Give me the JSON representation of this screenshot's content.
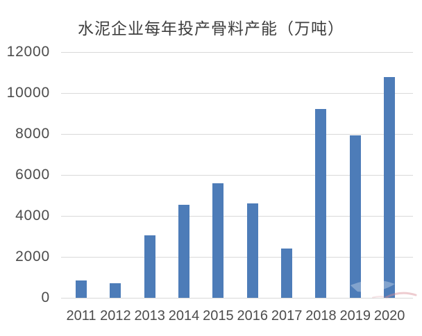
{
  "page": {
    "background": "#ffffff"
  },
  "chart_data": {
    "type": "bar",
    "title": "水泥企业每年投产骨料产能（万吨）",
    "categories": [
      "2011",
      "2012",
      "2013",
      "2014",
      "2015",
      "2016",
      "2017",
      "2018",
      "2019",
      "2020"
    ],
    "values": [
      850,
      700,
      3050,
      4550,
      5580,
      4600,
      2420,
      9220,
      7940,
      10780
    ],
    "xlabel": "",
    "ylabel": "",
    "ylim": [
      0,
      12000
    ],
    "yticks": [
      0,
      2000,
      4000,
      6000,
      8000,
      10000,
      12000
    ],
    "grid": true,
    "legend_position": "none",
    "colors": {
      "bar": "#4d7cb8",
      "gridline": "#d9d9d9",
      "axis_label": "#4c4c4c",
      "title": "#3e3e3e",
      "watermark_pink": "#d98f97",
      "background": "#ffffff"
    }
  }
}
